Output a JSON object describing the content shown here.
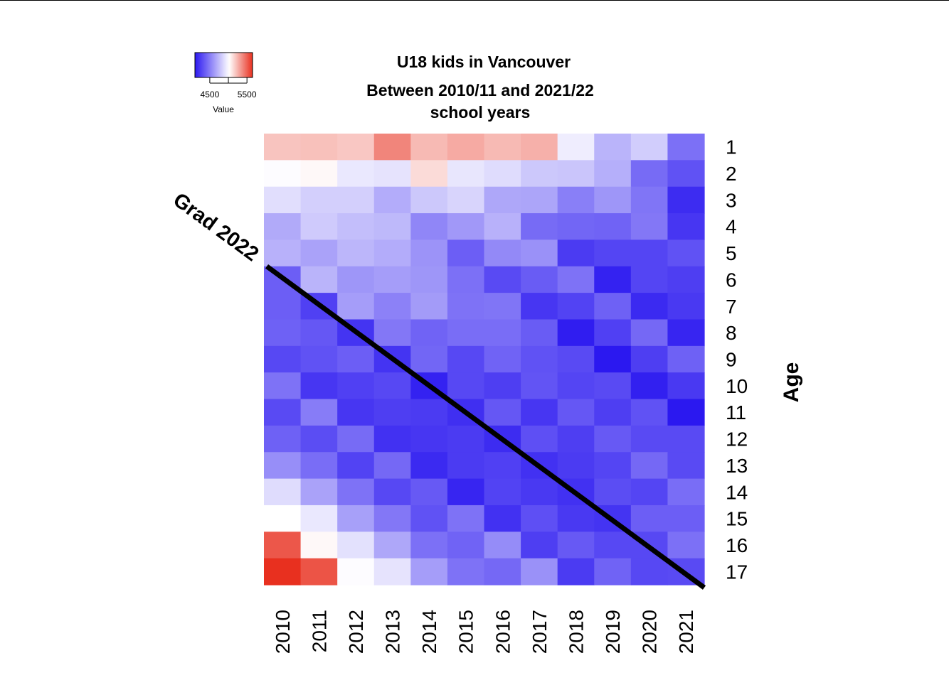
{
  "chart_data": {
    "type": "heatmap",
    "title": "U18 kids in Vancouver",
    "subtitle_lines": [
      "Between 2010/11 and 2021/22",
      "school years"
    ],
    "xlabel": "",
    "ylabel": "Age",
    "x": [
      "2010",
      "2011",
      "2012",
      "2013",
      "2014",
      "2015",
      "2016",
      "2017",
      "2018",
      "2019",
      "2020",
      "2021"
    ],
    "y": [
      "1",
      "2",
      "3",
      "4",
      "5",
      "6",
      "7",
      "8",
      "9",
      "10",
      "11",
      "12",
      "13",
      "14",
      "15",
      "16",
      "17"
    ],
    "values": [
      [
        5200,
        5210,
        5190,
        5390,
        5230,
        5280,
        5230,
        5260,
        4950,
        4720,
        4820,
        4450
      ],
      [
        5010,
        5040,
        4930,
        4910,
        5130,
        4920,
        4880,
        4800,
        4790,
        4700,
        4430,
        4330
      ],
      [
        4890,
        4830,
        4830,
        4690,
        4800,
        4850,
        4670,
        4660,
        4510,
        4600,
        4470,
        4180
      ],
      [
        4680,
        4810,
        4760,
        4740,
        4540,
        4610,
        4710,
        4430,
        4410,
        4400,
        4480,
        4220
      ],
      [
        4710,
        4650,
        4730,
        4690,
        4590,
        4380,
        4550,
        4580,
        4240,
        4280,
        4280,
        4330
      ],
      [
        4380,
        4720,
        4600,
        4630,
        4600,
        4450,
        4300,
        4370,
        4460,
        4140,
        4280,
        4250
      ],
      [
        4380,
        4260,
        4630,
        4520,
        4620,
        4460,
        4470,
        4220,
        4270,
        4390,
        4170,
        4230
      ],
      [
        4390,
        4350,
        4210,
        4480,
        4400,
        4440,
        4440,
        4370,
        4120,
        4260,
        4420,
        4150
      ],
      [
        4290,
        4330,
        4380,
        4210,
        4410,
        4290,
        4400,
        4330,
        4300,
        4100,
        4250,
        4390
      ],
      [
        4460,
        4220,
        4260,
        4290,
        4140,
        4290,
        4250,
        4340,
        4280,
        4300,
        4130,
        4230
      ],
      [
        4300,
        4500,
        4220,
        4250,
        4240,
        4190,
        4350,
        4220,
        4350,
        4250,
        4330,
        4100
      ],
      [
        4390,
        4310,
        4430,
        4200,
        4220,
        4240,
        4180,
        4320,
        4250,
        4360,
        4300,
        4300
      ],
      [
        4570,
        4440,
        4270,
        4420,
        4170,
        4240,
        4260,
        4200,
        4240,
        4280,
        4420,
        4300
      ],
      [
        4880,
        4650,
        4460,
        4290,
        4360,
        4150,
        4270,
        4230,
        4200,
        4310,
        4280,
        4440
      ],
      [
        5020,
        4930,
        4640,
        4480,
        4330,
        4460,
        4200,
        4320,
        4230,
        4210,
        4380,
        4380
      ],
      [
        5530,
        5040,
        4900,
        4670,
        4450,
        4400,
        4560,
        4250,
        4360,
        4290,
        4290,
        4450
      ],
      [
        5650,
        5540,
        5010,
        4910,
        4630,
        4460,
        4420,
        4580,
        4240,
        4400,
        4290,
        4300
      ]
    ],
    "colorscale": {
      "low_color": "#2b18f0",
      "mid_color": "#ffffff",
      "high_color": "#e8301f",
      "range": [
        4100,
        5650
      ],
      "midpoint": 5020
    },
    "color_key": {
      "title": "Value",
      "ticks": [
        "4500",
        "5500"
      ],
      "tick_values": [
        4500,
        5500
      ]
    },
    "annotation": {
      "label": "Grad 2022",
      "from": [
        "2010",
        "6"
      ],
      "to": [
        "2021",
        "17"
      ],
      "color": "#000000"
    },
    "grid": false
  }
}
